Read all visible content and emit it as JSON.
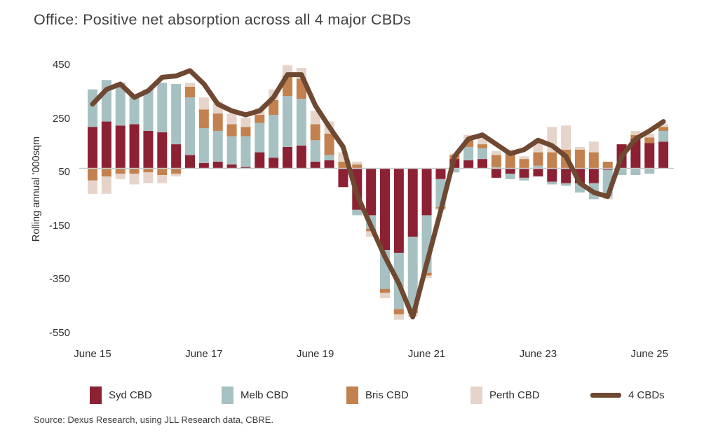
{
  "title": "Office: Positive net absorption across all 4 major CBDs",
  "source": "Source: Dexus Research, using JLL Research data, CBRE.",
  "y_axis": {
    "label": "Rolling annual '000sqm",
    "ticks": [
      450,
      250,
      50,
      -150,
      -350,
      -550
    ]
  },
  "x_axis": {
    "shown_labels": [
      "June 15",
      "June 17",
      "June 19",
      "June 21",
      "June 23",
      "June 25"
    ],
    "label_every_n_bars": 8
  },
  "colors": {
    "syd": "#8B2133",
    "melb": "#A7C1C2",
    "bris": "#C2814E",
    "perth": "#E6D4CA",
    "line": "#6F4832",
    "baseline": "#c9c9c9",
    "text": "#2f2f2f"
  },
  "legend": [
    {
      "label": "Syd CBD",
      "type": "square",
      "color": "#8B2133"
    },
    {
      "label": "Melb CBD",
      "type": "square",
      "color": "#A7C1C2"
    },
    {
      "label": "Bris CBD",
      "type": "square",
      "color": "#C2814E"
    },
    {
      "label": "Perth CBD",
      "type": "square",
      "color": "#E6D4CA"
    },
    {
      "label": "4 CBDs",
      "type": "line",
      "color": "#6F4832"
    }
  ],
  "chart_data": {
    "type": "bar",
    "subtype": "stacked-bars-with-line-overlay",
    "title": "Office: Positive net absorption across all 4 major CBDs",
    "ylabel": "Rolling annual '000sqm",
    "units": "'000 sqm, rolling annual",
    "ylim": [
      -620,
      470
    ],
    "grid": "single zero baseline only",
    "legend_position": "bottom",
    "x": [
      "Jun-15",
      "Sep-15",
      "Dec-15",
      "Mar-16",
      "Jun-16",
      "Sep-16",
      "Dec-16",
      "Mar-17",
      "Jun-17",
      "Sep-17",
      "Dec-17",
      "Mar-18",
      "Jun-18",
      "Sep-18",
      "Dec-18",
      "Mar-19",
      "Jun-19",
      "Sep-19",
      "Dec-19",
      "Mar-20",
      "Jun-20",
      "Sep-20",
      "Dec-20",
      "Mar-21",
      "Jun-21",
      "Sep-21",
      "Dec-21",
      "Mar-22",
      "Jun-22",
      "Sep-22",
      "Dec-22",
      "Mar-23",
      "Jun-23",
      "Sep-23",
      "Dec-23",
      "Mar-24",
      "Jun-24",
      "Sep-24",
      "Dec-24",
      "Mar-25",
      "Jun-25",
      "Sep-25"
    ],
    "series": [
      {
        "name": "Syd CBD",
        "values": [
          155,
          175,
          160,
          165,
          140,
          135,
          90,
          50,
          20,
          25,
          15,
          5,
          60,
          40,
          80,
          85,
          25,
          30,
          -70,
          -155,
          -175,
          -305,
          -315,
          -255,
          -175,
          -40,
          35,
          30,
          35,
          -35,
          -20,
          -35,
          -30,
          -50,
          -55,
          -55,
          -55,
          -5,
          90,
          110,
          95,
          100
        ]
      },
      {
        "name": "Melb CBD",
        "values": [
          140,
          155,
          160,
          105,
          155,
          185,
          225,
          215,
          130,
          115,
          105,
          115,
          110,
          160,
          190,
          175,
          80,
          20,
          0,
          -20,
          -50,
          -145,
          -210,
          -270,
          -215,
          -105,
          -15,
          50,
          40,
          5,
          -20,
          -10,
          10,
          -10,
          -10,
          -35,
          -60,
          -100,
          -25,
          -25,
          -20,
          40
        ]
      },
      {
        "name": "Bris CBD",
        "values": [
          -45,
          -30,
          -20,
          -20,
          -15,
          -25,
          -20,
          40,
          70,
          65,
          45,
          35,
          30,
          55,
          75,
          75,
          60,
          80,
          25,
          15,
          -10,
          -15,
          -20,
          -15,
          -10,
          -5,
          15,
          25,
          15,
          45,
          55,
          35,
          50,
          60,
          70,
          70,
          60,
          25,
          0,
          15,
          20,
          15
        ]
      },
      {
        "name": "Perth CBD",
        "values": [
          -50,
          -65,
          -20,
          -40,
          -40,
          -30,
          -10,
          15,
          45,
          45,
          40,
          35,
          25,
          40,
          40,
          40,
          50,
          45,
          35,
          10,
          -20,
          -20,
          -20,
          -15,
          -10,
          -5,
          5,
          20,
          35,
          15,
          15,
          10,
          50,
          95,
          90,
          10,
          40,
          -10,
          0,
          15,
          15,
          10
        ]
      }
    ],
    "line_series": {
      "name": "4 CBDs",
      "values": [
        240,
        295,
        315,
        265,
        290,
        340,
        345,
        365,
        315,
        240,
        215,
        200,
        215,
        265,
        350,
        350,
        235,
        155,
        80,
        -100,
        -215,
        -330,
        -430,
        -555,
        -355,
        -160,
        45,
        110,
        125,
        90,
        55,
        70,
        105,
        85,
        45,
        -55,
        -90,
        -105,
        45,
        110,
        140,
        175
      ]
    }
  }
}
